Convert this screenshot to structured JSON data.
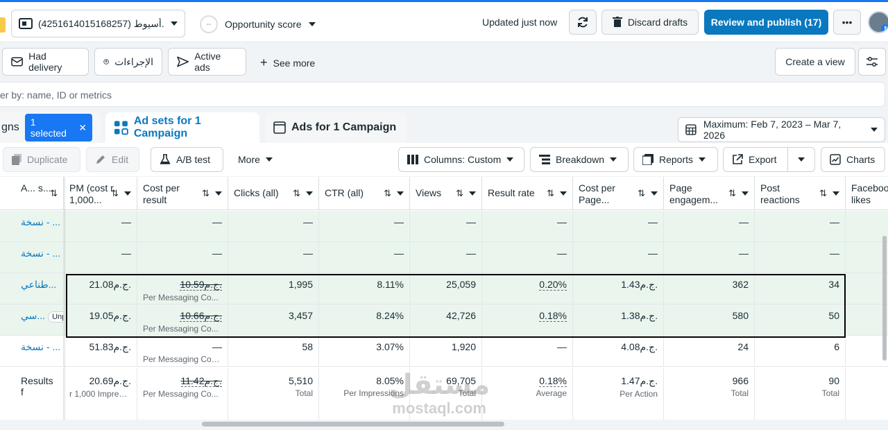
{
  "topbar": {
    "account": "(4251614015168257) أسيوط...",
    "opportunity": "Opportunity score",
    "opportunity_ring": "--",
    "updated": "Updated just now",
    "discard": "Discard drafts",
    "publish": "Review and publish (17)",
    "more": "•••",
    "fb_badge": "f"
  },
  "filters": {
    "delivery": "Had delivery",
    "actions": "الإجراءات",
    "active": "Active ads",
    "see_more": "See more",
    "create_view": "Create a view"
  },
  "search": {
    "placeholder": "er by: name, ID or metrics"
  },
  "tabs": {
    "campaigns": "gns",
    "selected": "1 selected",
    "adsets": "Ad sets for 1 Campaign",
    "ads": "Ads for 1 Campaign",
    "date": "Maximum: Feb 7, 2023 – Mar 7, 2026"
  },
  "toolbar": {
    "duplicate": "Duplicate",
    "edit": "Edit",
    "ab_test": "A/B test",
    "more": "More",
    "columns": "Columns: Custom",
    "breakdown": "Breakdown",
    "reports": "Reports",
    "export": "Export",
    "charts": "Charts"
  },
  "table": {
    "headers": [
      "A... s...",
      "PM (cost r 1,000...",
      "Cost per result",
      "Clicks (all)",
      "CTR (all)",
      "Views",
      "Result rate",
      "Cost per Page...",
      "Page engagem...",
      "Post reactions",
      "Faceboo likes"
    ],
    "rows": [
      {
        "name": "نسخة - ...",
        "cpm": "—",
        "cpr": "—",
        "cpr_sub": "",
        "clicks": "—",
        "ctr": "—",
        "views": "—",
        "rr": "—",
        "cpp": "—",
        "pe": "—",
        "pr": "—",
        "green": true
      },
      {
        "name": "نسخة - ...",
        "cpm": "—",
        "cpr": "—",
        "cpr_sub": "",
        "clicks": "—",
        "ctr": "—",
        "views": "—",
        "rr": "—",
        "cpp": "—",
        "pe": "—",
        "pr": "—",
        "green": true
      },
      {
        "name": "طناعي...",
        "cpm": "21.08ج.م.",
        "cpr": "10.59ج.م.",
        "cpr_sub": "Per Messaging Co...",
        "clicks": "1,995",
        "ctr": "8.11%",
        "views": "25,059",
        "rr": "0.20%",
        "cpp": "1.43ج.م.",
        "pe": "362",
        "pr": "34",
        "green": true
      },
      {
        "name": "سي...",
        "cpm": "19.05ج.م.",
        "cpr": "10.66ج.م.",
        "cpr_sub": "Per Messaging Co...",
        "clicks": "3,457",
        "ctr": "8.24%",
        "views": "42,726",
        "rr": "0.18%",
        "cpp": "1.38ج.م.",
        "pe": "580",
        "pr": "50",
        "green": true,
        "badge": "Unp"
      },
      {
        "name": "نسخة - ...",
        "cpm": "51.83ج.م.",
        "cpr": "—",
        "cpr_sub": "Per Messaging Con...",
        "clicks": "58",
        "ctr": "3.07%",
        "views": "1,920",
        "rr": "—",
        "cpp": "4.08ج.م.",
        "pe": "24",
        "pr": "6",
        "green": false
      }
    ],
    "totals": {
      "label": "Results f",
      "cpm": "20.69ج.م.",
      "cpm_sub": "r 1,000 Impressi...",
      "cpr": "11.42ج.م.",
      "cpr_sub": "Per Messaging Co...",
      "clicks": "5,510",
      "clicks_sub": "Total",
      "ctr": "8.05%",
      "ctr_sub": "Per Impressions",
      "views": "69,705",
      "views_sub": "Total",
      "rr": "0.18%",
      "rr_sub": "Average",
      "cpp": "1.47ج.م.",
      "cpp_sub": "Per Action",
      "pe": "966",
      "pe_sub": "Total",
      "pr": "90",
      "pr_sub": "Total"
    }
  },
  "watermark": {
    "ar": "مستقل",
    "en": "mostaql.com"
  }
}
